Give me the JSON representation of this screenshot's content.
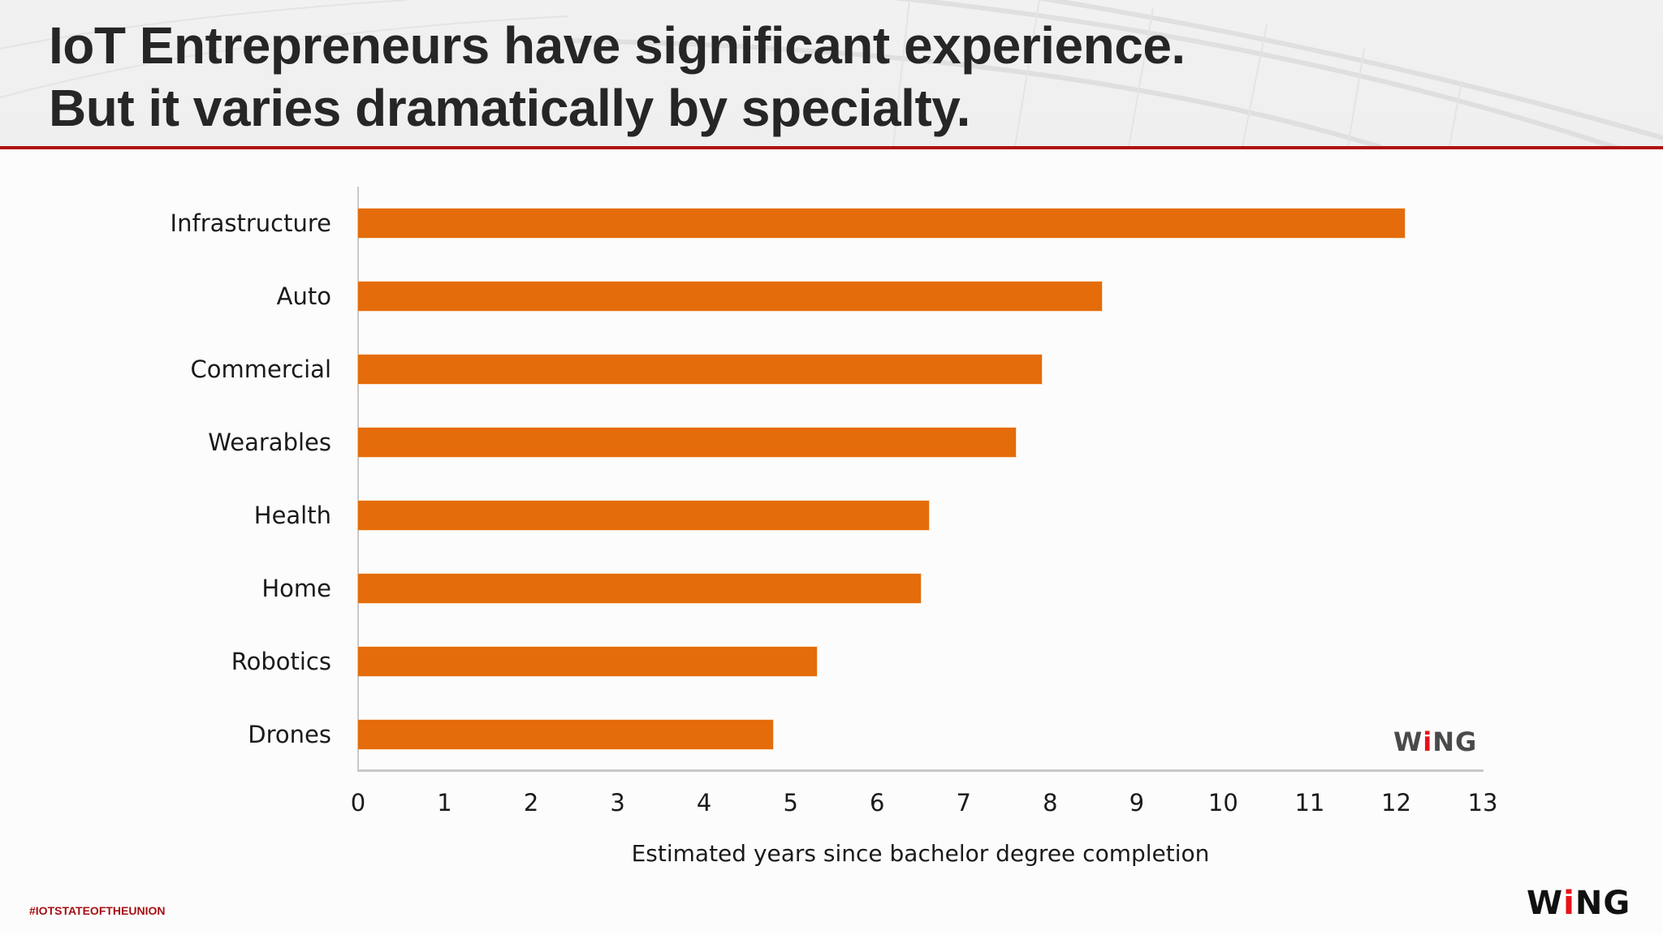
{
  "slide": {
    "title_lines": [
      "IoT Entrepreneurs have significant experience.",
      "But it varies dramatically by specialty."
    ],
    "hashtag": "#IOTSTATEOFTHEUNION",
    "footer_logo": {
      "pre": "W",
      "accent": "i",
      "post": "NG"
    },
    "chart_logo": {
      "pre": "W",
      "accent": "i",
      "post": "NG"
    },
    "colors": {
      "bar": "#e46c0a",
      "rule": "#b00e10",
      "title": "#262626",
      "hashtag": "#a50f12",
      "logo_accent": "#e8121a"
    }
  },
  "chart_data": {
    "type": "bar",
    "orientation": "horizontal",
    "title": "IoT Entrepreneurs have significant experience. But it varies dramatically by specialty.",
    "categories": [
      "Infrastructure",
      "Auto",
      "Commercial",
      "Wearables",
      "Health",
      "Home",
      "Robotics",
      "Drones"
    ],
    "values": [
      12.1,
      8.6,
      7.9,
      7.6,
      6.6,
      6.5,
      5.3,
      4.8
    ],
    "xlabel": "Estimated years since bachelor degree completion",
    "ylabel": "",
    "xlim": [
      0,
      13
    ],
    "xticks": [
      "0",
      "1",
      "2",
      "3",
      "4",
      "5",
      "6",
      "7",
      "8",
      "9",
      "10",
      "11",
      "12",
      "13"
    ],
    "grid": false,
    "legend": null
  }
}
